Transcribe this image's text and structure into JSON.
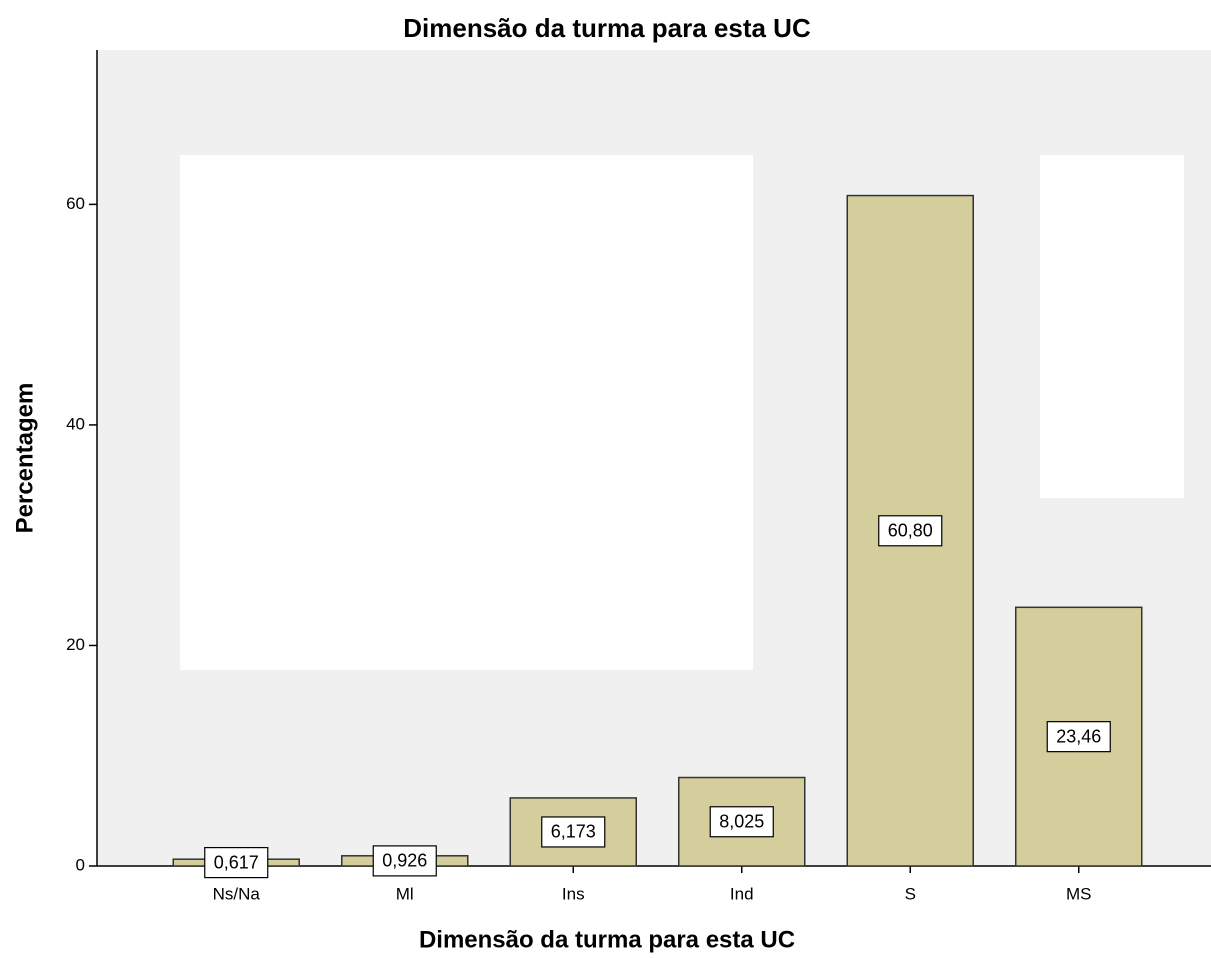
{
  "chart_data": {
    "type": "bar",
    "title": "Dimensão da turma para esta UC",
    "x_label": "Dimensão da turma para esta UC",
    "y_label": "Percentagem",
    "categories": [
      "Ns/Na",
      "Ml",
      "Ins",
      "Ind",
      "S",
      "MS"
    ],
    "values": [
      0.617,
      0.926,
      6.173,
      8.025,
      60.8,
      23.46
    ],
    "value_labels": [
      "0,617",
      "0,926",
      "6,173",
      "8,025",
      "60,80",
      "23,46"
    ],
    "color": "#d3ce9c",
    "ylim": [
      0,
      74
    ],
    "yticks": [
      0,
      20,
      40,
      60
    ]
  }
}
